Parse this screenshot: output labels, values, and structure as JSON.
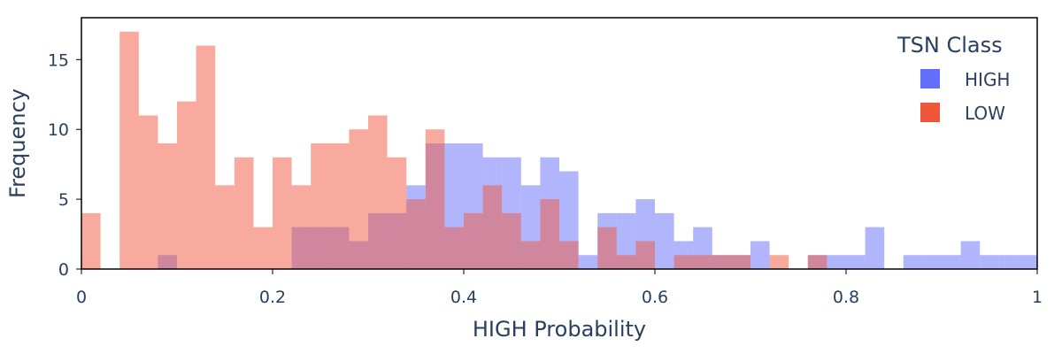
{
  "chart_data": {
    "type": "bar",
    "barmode": "overlay",
    "xlabel": "HIGH Probability",
    "ylabel": "Frequency",
    "xlim": [
      0,
      1
    ],
    "ylim": [
      0,
      18
    ],
    "bin_width": 0.02,
    "x_ticks": [
      0,
      0.2,
      0.4,
      0.6,
      0.8,
      1
    ],
    "x_tick_labels": [
      "0",
      "0.2",
      "0.4",
      "0.6",
      "0.8",
      "1"
    ],
    "y_ticks": [
      0,
      5,
      10,
      15
    ],
    "y_tick_labels": [
      "0",
      "5",
      "10",
      "15"
    ],
    "grid": false,
    "legend": {
      "title": "TSN Class",
      "position": "top-right"
    },
    "bin_starts": [
      0,
      0.02,
      0.04,
      0.06,
      0.08,
      0.1,
      0.12,
      0.14,
      0.16,
      0.18,
      0.2,
      0.22,
      0.24,
      0.26,
      0.28,
      0.3,
      0.32,
      0.34,
      0.36,
      0.38,
      0.4,
      0.42,
      0.44,
      0.46,
      0.48,
      0.5,
      0.52,
      0.54,
      0.56,
      0.58,
      0.6,
      0.62,
      0.64,
      0.66,
      0.68,
      0.7,
      0.72,
      0.74,
      0.76,
      0.78,
      0.8,
      0.82,
      0.84,
      0.86,
      0.88,
      0.9,
      0.92,
      0.94,
      0.96,
      0.98
    ],
    "series": [
      {
        "name": "HIGH",
        "color": "#636efa",
        "opacity": 0.5,
        "values": [
          0,
          0,
          0,
          0,
          1,
          0,
          0,
          0,
          0,
          0,
          0,
          3,
          3,
          3,
          2,
          4,
          4,
          6,
          9,
          9,
          9,
          8,
          8,
          6,
          8,
          7,
          1,
          4,
          4,
          5,
          4,
          2,
          3,
          1,
          1,
          2,
          0,
          0,
          1,
          1,
          1,
          3,
          0,
          1,
          1,
          1,
          2,
          1,
          1,
          1
        ]
      },
      {
        "name": "LOW",
        "color": "#ef553b",
        "opacity": 0.5,
        "values": [
          4,
          0,
          17,
          11,
          9,
          12,
          16,
          6,
          8,
          3,
          8,
          6,
          9,
          9,
          10,
          11,
          8,
          5,
          10,
          3,
          4,
          6,
          4,
          2,
          5,
          2,
          0,
          3,
          1,
          2,
          0,
          1,
          1,
          1,
          1,
          0,
          1,
          0,
          1,
          0,
          0,
          0,
          0,
          0,
          0,
          0,
          0,
          0,
          0,
          0
        ]
      }
    ]
  }
}
